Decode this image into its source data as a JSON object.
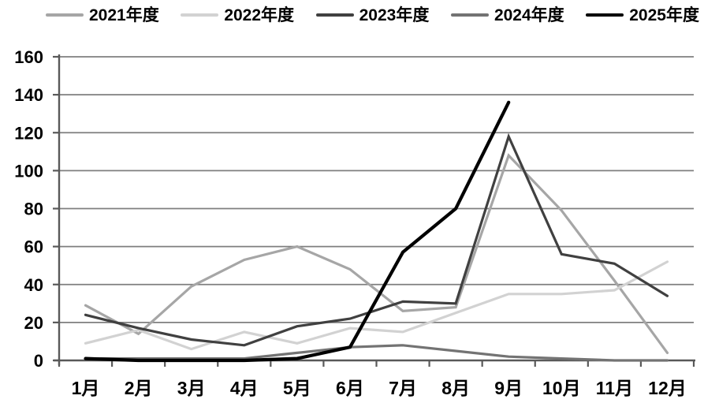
{
  "chart_data": {
    "type": "line",
    "title": "",
    "xlabel": "",
    "ylabel": "",
    "categories": [
      "1月",
      "2月",
      "3月",
      "4月",
      "5月",
      "6月",
      "7月",
      "8月",
      "9月",
      "10月",
      "11月",
      "12月"
    ],
    "series": [
      {
        "name": "2021年度",
        "color": "#a6a6a6",
        "stroke_width": 3.2,
        "values": [
          29,
          14,
          39,
          53,
          60,
          48,
          26,
          28,
          108,
          79,
          42,
          4
        ]
      },
      {
        "name": "2022年度",
        "color": "#d2d2d2",
        "stroke_width": 3.2,
        "values": [
          9,
          16,
          6,
          15,
          9,
          17,
          15,
          25,
          35,
          35,
          37,
          52
        ]
      },
      {
        "name": "2023年度",
        "color": "#404040",
        "stroke_width": 3.2,
        "values": [
          24,
          17,
          11,
          8,
          18,
          22,
          31,
          30,
          118,
          56,
          51,
          34
        ]
      },
      {
        "name": "2024年度",
        "color": "#737373",
        "stroke_width": 3.2,
        "values": [
          1,
          1,
          1,
          1,
          4,
          7,
          8,
          5,
          2,
          1,
          0,
          0
        ]
      },
      {
        "name": "2025年度",
        "color": "#000000",
        "stroke_width": 4.2,
        "values": [
          1,
          0,
          0,
          0,
          1,
          7,
          57,
          80,
          136
        ]
      }
    ],
    "ylim": [
      0,
      160
    ],
    "yticks": [
      0,
      20,
      40,
      60,
      80,
      100,
      120,
      140,
      160
    ],
    "grid": "horizontal",
    "legend_position": "top"
  },
  "style": {
    "gridline_color": "#7f7f7f",
    "axis_color": "#595959",
    "text_color": "#000000",
    "background": "#ffffff"
  }
}
